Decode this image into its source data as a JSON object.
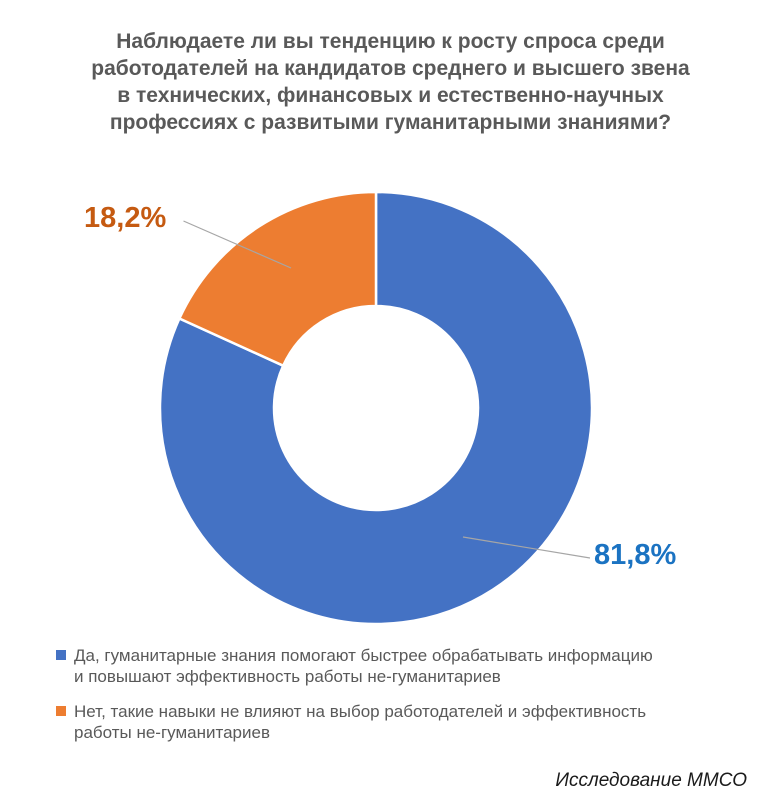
{
  "title": {
    "lines": [
      "Наблюдаете ли вы тенденцию к росту спроса среди",
      "работодателей на кандидатов среднего и высшего звена",
      "в технических, финансовых и естественно-научных",
      "профессиях с развитыми гуманитарными знаниями?"
    ]
  },
  "chart_data": {
    "type": "pie",
    "subtype": "donut",
    "title": "Наблюдаете ли вы тенденцию к росту спроса среди работодателей на кандидатов среднего и высшего звена в технических, финансовых и естественно-научных профессиях с развитыми гуманитарными знаниями?",
    "categories": [
      "Да, гуманитарные знания помогают быстрее обрабатывать информацию и повышают эффективность работы не-гуманитариев",
      "Нет, такие навыки не влияют на выбор работодателей и эффективность работы не-гуманитариев"
    ],
    "values": [
      81.8,
      18.2
    ],
    "data_labels": [
      "81,8%",
      "18,2%"
    ],
    "colors": [
      "#4472C4",
      "#ED7D31"
    ],
    "data_label_colors": [
      "#1B73C2",
      "#C55A11"
    ],
    "start_angle_deg": 0,
    "direction": "clockwise",
    "hole_ratio": 0.47,
    "leader_line_color": "#A6A6A6",
    "legend_position": "bottom-left"
  },
  "labels": {
    "blue_percent": "81,8%",
    "orange_percent": "18,2%"
  },
  "legend": {
    "items": [
      {
        "color": "#4472C4",
        "lines": [
          "Да, гуманитарные знания помогают быстрее обрабатывать информацию",
          "и повышают эффективность работы не-гуманитариев"
        ]
      },
      {
        "color": "#ED7D31",
        "lines": [
          "Нет, такие навыки не влияют на выбор работодателей и эффективность",
          "работы не-гуманитариев"
        ]
      }
    ]
  },
  "footer": {
    "source": "Исследование ММСО"
  }
}
